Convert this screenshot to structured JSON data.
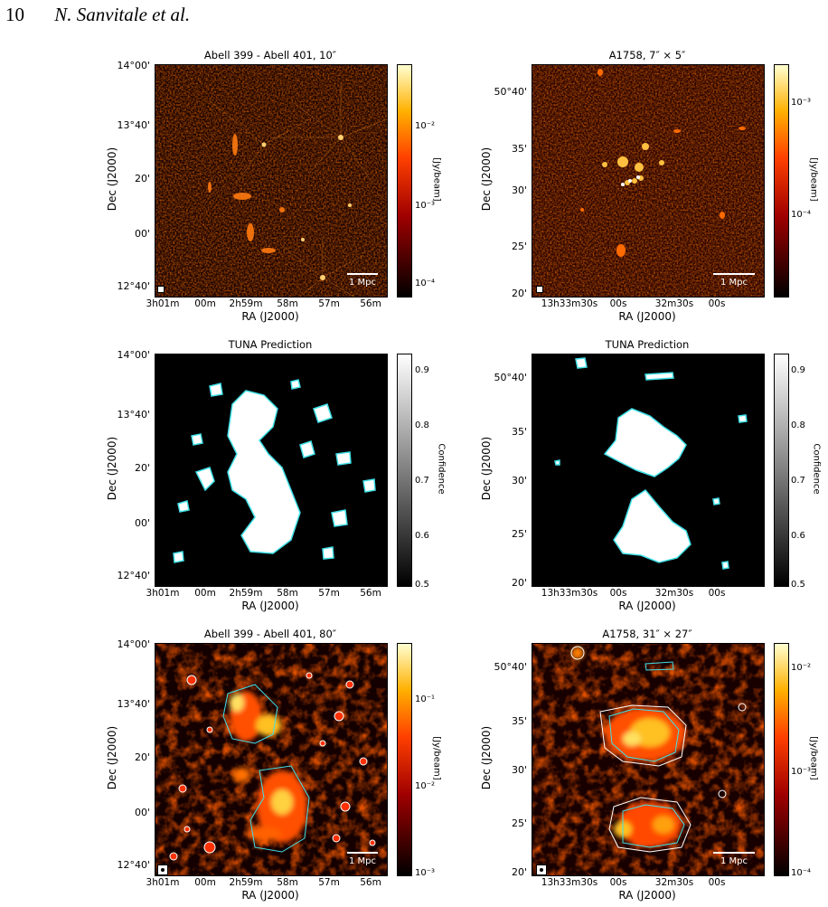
{
  "header": {
    "page_number": "10",
    "authors": "N. Sanvitale et al."
  },
  "axes_left": {
    "xlabel": "RA (J2000)",
    "ylabel": "Dec (J2000)",
    "xticks": [
      "3h01m",
      "00m",
      "2h59m",
      "58m",
      "57m",
      "56m"
    ],
    "yticks": [
      "14°00'",
      "13°40'",
      "20'",
      "00'",
      "12°40'"
    ]
  },
  "axes_right": {
    "xlabel": "RA (J2000)",
    "ylabel": "Dec (J2000)",
    "xticks": [
      "13h33m30s",
      "00s",
      "32m30s",
      "00s"
    ],
    "yticks": [
      "50°40'",
      "35'",
      "30'",
      "25'",
      "20'"
    ]
  },
  "panels": {
    "p1": {
      "title": "Abell 399 - Abell 401, 10″",
      "cbar_label": "[Jy/beam]",
      "cbar_ticks": [
        "10⁻²",
        "10⁻³",
        "10⁻⁴"
      ],
      "scale_label": "1 Mpc"
    },
    "p2": {
      "title": "A1758, 7″ × 5″",
      "cbar_label": "[Jy/beam]",
      "cbar_ticks": [
        "10⁻³",
        "10⁻⁴"
      ],
      "scale_label": "1 Mpc"
    },
    "p3": {
      "title": "TUNA Prediction",
      "cbar_label": "Confidence",
      "cbar_ticks": [
        "0.9",
        "0.8",
        "0.7",
        "0.6",
        "0.5"
      ]
    },
    "p4": {
      "title": "TUNA Prediction",
      "cbar_label": "Confidence",
      "cbar_ticks": [
        "0.9",
        "0.8",
        "0.7",
        "0.6",
        "0.5"
      ]
    },
    "p5": {
      "title": "Abell 399 - Abell 401, 80″",
      "cbar_label": "[Jy/beam]",
      "cbar_ticks": [
        "10⁻¹",
        "10⁻²",
        "10⁻³"
      ],
      "scale_label": "1 Mpc"
    },
    "p6": {
      "title": "A1758, 31″ × 27″",
      "cbar_label": "[Jy/beam]",
      "cbar_ticks": [
        "10⁻²",
        "10⁻³",
        "10⁻⁴"
      ],
      "scale_label": "1 Mpc"
    }
  },
  "colors": {
    "afmhot_dark": "#120000",
    "afmhot_red": "#c81400",
    "afmhot_orange": "#ff8c00",
    "afmhot_yellow": "#ffff80",
    "prediction_contour": "#40e0e8",
    "contour_white": "#ffffff"
  }
}
